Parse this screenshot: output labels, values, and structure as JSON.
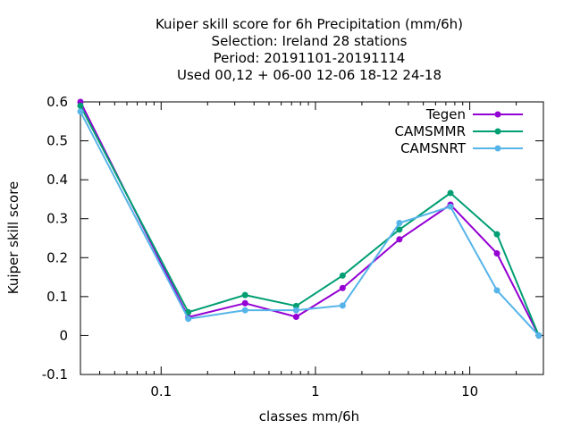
{
  "chart_data": {
    "type": "line",
    "title_lines": [
      "Kuiper skill score  for 6h Precipitation (mm/6h)",
      "Selection: Ireland      28 stations",
      "Period: 20191101-20191114",
      "Used  00,12  + 06-00 12-06 18-12 24-18"
    ],
    "xlabel": "classes mm/6h",
    "ylabel": "Kuiper skill score",
    "x_scale": "log",
    "xlim": [
      0.03,
      30
    ],
    "ylim": [
      -0.1,
      0.6
    ],
    "x_ticks": [
      {
        "value": 0.1,
        "label": "0.1"
      },
      {
        "value": 1,
        "label": "1"
      },
      {
        "value": 10,
        "label": "10"
      }
    ],
    "y_ticks": [
      {
        "value": -0.1,
        "label": "-0.1"
      },
      {
        "value": 0,
        "label": "0"
      },
      {
        "value": 0.1,
        "label": "0.1"
      },
      {
        "value": 0.2,
        "label": "0.2"
      },
      {
        "value": 0.3,
        "label": "0.3"
      },
      {
        "value": 0.4,
        "label": "0.4"
      },
      {
        "value": 0.5,
        "label": "0.5"
      },
      {
        "value": 0.6,
        "label": "0.6"
      }
    ],
    "x": [
      0.03,
      0.15,
      0.35,
      0.75,
      1.5,
      3.5,
      7.5,
      15,
      28
    ],
    "series": [
      {
        "name": "Tegen",
        "color": "#9400d3",
        "values": [
          0.6,
          0.047,
          0.083,
          0.048,
          0.122,
          0.247,
          0.336,
          0.211,
          0.0
        ]
      },
      {
        "name": "CAMSMMR",
        "color": "#009e73",
        "values": [
          0.59,
          0.06,
          0.104,
          0.076,
          0.154,
          0.272,
          0.366,
          0.26,
          0.0
        ]
      },
      {
        "name": "CAMSNRT",
        "color": "#56b4e9",
        "values": [
          0.575,
          0.043,
          0.065,
          0.065,
          0.077,
          0.289,
          0.331,
          0.116,
          0.0
        ]
      }
    ],
    "grid": false,
    "legend_position": "top-right"
  }
}
